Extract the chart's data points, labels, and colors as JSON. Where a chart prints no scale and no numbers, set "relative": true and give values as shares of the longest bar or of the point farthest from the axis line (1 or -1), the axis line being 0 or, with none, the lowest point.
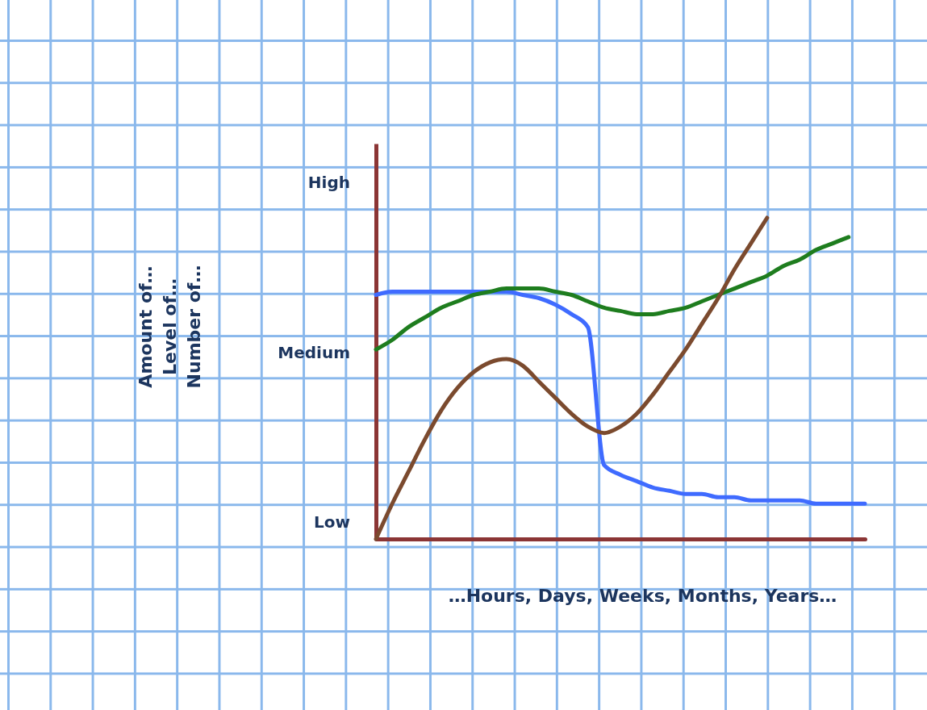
{
  "chart_data": {
    "type": "line",
    "xlabel": "…Hours, Days, Weeks, Months, Years…",
    "annotations": [
      "Amount of…\nLevel of…\nNumber of…",
      "High",
      "Medium",
      "Low"
    ],
    "categories": [
      null,
      null,
      null,
      null,
      null,
      null,
      null,
      null,
      null,
      null,
      null,
      null,
      null,
      null,
      null,
      null,
      null,
      null,
      null,
      null,
      null,
      null,
      null,
      null,
      null,
      null,
      null,
      null,
      null,
      null,
      null
    ],
    "series": [
      {
        "color": "#3f6bff",
        "values": [
          0.76,
          0.77,
          0.77,
          0.77,
          0.77,
          0.77,
          0.77,
          0.77,
          0.77,
          0.76,
          0.75,
          0.73,
          0.7,
          0.66,
          0.23,
          0.2,
          0.18,
          0.16,
          0.15,
          0.14,
          0.14,
          0.13,
          0.13,
          0.12,
          0.12,
          0.12,
          0.12,
          0.11,
          0.11,
          0.11,
          0.11
        ]
      },
      {
        "color": "#1e7d1e",
        "values": [
          0.59,
          0.62,
          0.66,
          0.69,
          0.72,
          0.74,
          0.76,
          0.77,
          0.78,
          0.78,
          0.78,
          0.77,
          0.76,
          0.74,
          0.72,
          0.71,
          0.7,
          0.7,
          0.71,
          0.72,
          0.74,
          0.76,
          0.78,
          0.8,
          0.82,
          0.85,
          0.87,
          0.9,
          0.92,
          0.94,
          null
        ]
      },
      {
        "color": "#7b4a2e",
        "values": [
          0,
          0.11,
          0.21,
          0.31,
          0.4,
          0.47,
          0.52,
          0.55,
          0.56,
          0.54,
          0.49,
          0.44,
          0.39,
          0.35,
          0.33,
          0.35,
          0.39,
          0.45,
          0.52,
          0.59,
          0.67,
          0.75,
          0.84,
          0.92,
          1,
          null,
          null,
          null,
          null,
          null,
          null
        ]
      }
    ],
    "relative": true,
    "tick_labels": false,
    "grid": false,
    "legend": false,
    "marker": "none",
    "line_style": "solid"
  }
}
